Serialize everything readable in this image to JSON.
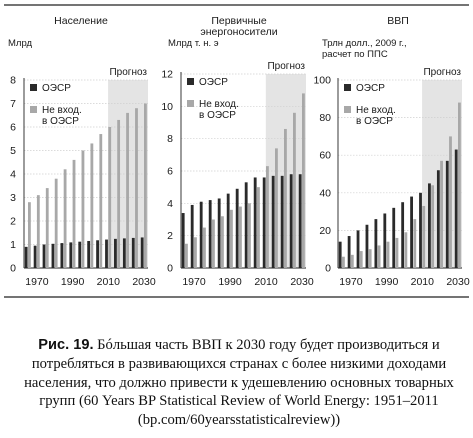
{
  "forecast_label": "Прогноз",
  "chart_data": [
    {
      "type": "bar",
      "title": "Население",
      "ylabel": "Млрд",
      "ylim": [
        0,
        8
      ],
      "yticks": [
        0,
        1,
        2,
        3,
        4,
        5,
        6,
        7,
        8
      ],
      "xticks": [
        "1970",
        "1990",
        "2010",
        "2030"
      ],
      "x": [
        1965,
        1970,
        1975,
        1980,
        1985,
        1990,
        1995,
        2000,
        2005,
        2010,
        2015,
        2020,
        2025,
        2030
      ],
      "forecast_from": 2011,
      "series": [
        {
          "name": "ОЭСР",
          "color": "#2a2a2a",
          "values": [
            0.9,
            0.95,
            1.0,
            1.03,
            1.06,
            1.09,
            1.12,
            1.15,
            1.18,
            1.21,
            1.24,
            1.26,
            1.28,
            1.3
          ]
        },
        {
          "name": "Не вход.\nв ОЭСР",
          "color": "#a8a8a8",
          "values": [
            2.8,
            3.1,
            3.4,
            3.8,
            4.2,
            4.6,
            5.0,
            5.3,
            5.7,
            6.0,
            6.3,
            6.6,
            6.8,
            7.0
          ]
        }
      ]
    },
    {
      "type": "bar",
      "title": "Первичные\nэнергоносители",
      "ylabel": "Млрд т. н. э",
      "ylim": [
        0,
        12
      ],
      "yticks": [
        0,
        2,
        4,
        6,
        8,
        10,
        12
      ],
      "xticks": [
        "1970",
        "1990",
        "2010",
        "2030"
      ],
      "x": [
        1965,
        1970,
        1975,
        1980,
        1985,
        1990,
        1995,
        2000,
        2005,
        2010,
        2015,
        2020,
        2025,
        2030
      ],
      "forecast_from": 2011,
      "series": [
        {
          "name": "ОЭСР",
          "color": "#2a2a2a",
          "values": [
            3.4,
            3.9,
            4.1,
            4.2,
            4.3,
            4.6,
            4.9,
            5.3,
            5.6,
            5.6,
            5.7,
            5.7,
            5.8,
            5.8
          ]
        },
        {
          "name": "Не вход.\nв ОЭСР",
          "color": "#a8a8a8",
          "values": [
            1.5,
            1.9,
            2.5,
            3.0,
            3.2,
            3.6,
            3.8,
            4.0,
            5.0,
            6.3,
            7.4,
            8.6,
            9.6,
            10.8
          ]
        }
      ]
    },
    {
      "type": "bar",
      "title": "ВВП",
      "ylabel": "Трлн долл., 2009 г.,\nрасчет по ППС",
      "ylim": [
        0,
        100
      ],
      "yticks": [
        0,
        20,
        40,
        60,
        80,
        100
      ],
      "xticks": [
        "1970",
        "1990",
        "2010",
        "2030"
      ],
      "x": [
        1965,
        1970,
        1975,
        1980,
        1985,
        1990,
        1995,
        2000,
        2005,
        2010,
        2015,
        2020,
        2025,
        2030
      ],
      "forecast_from": 2011,
      "series": [
        {
          "name": "ОЭСР",
          "color": "#2a2a2a",
          "values": [
            14,
            17,
            20,
            23,
            26,
            29,
            32,
            35,
            38,
            40,
            45,
            52,
            57,
            63
          ]
        },
        {
          "name": "Не вход.\nв ОЭСР",
          "color": "#a8a8a8",
          "values": [
            6,
            7,
            9,
            10,
            12,
            14,
            16,
            19,
            26,
            33,
            44,
            57,
            70,
            88
          ]
        }
      ]
    }
  ],
  "caption": {
    "label": "Рис. 19.",
    "text": "Бóльшая часть ВВП к 2030 году будет производиться и потребляться в развивающихся странах с более низкими доходами населения, что должно привести к удешевлению основных товарных групп (60 Years BP Statistical Review of World Energy: 1951–2011 (bp.com/60yearsstatisticalreview))"
  }
}
